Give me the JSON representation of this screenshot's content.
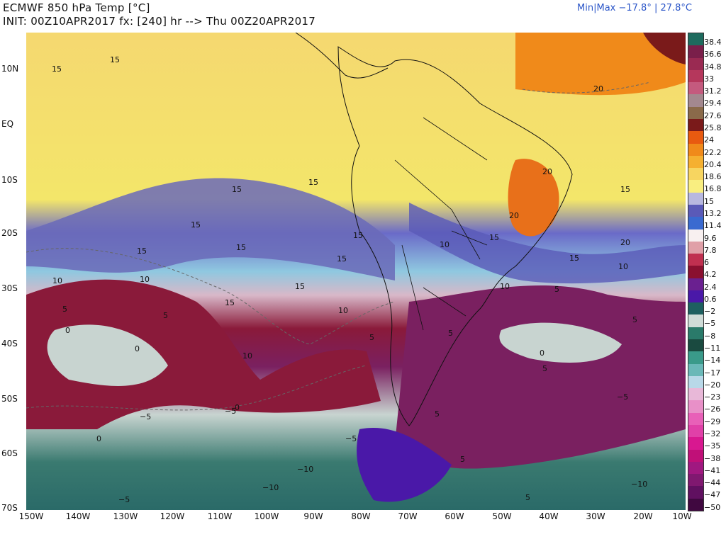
{
  "title": {
    "line1": "ECMWF 850 hPa Temp [°C]",
    "line2": "INIT: 00Z10APR2017 fx: [240] hr --> Thu 00Z20APR2017"
  },
  "minmax": "Min|Max −17.8° | 27.8°C",
  "lat_labels": [
    "10N",
    "EQ",
    "10S",
    "20S",
    "30S",
    "40S",
    "50S",
    "60S",
    "70S"
  ],
  "lon_labels": [
    "150W",
    "140W",
    "130W",
    "120W",
    "110W",
    "100W",
    "90W",
    "80W",
    "70W",
    "60W",
    "50W",
    "40W",
    "30W",
    "20W",
    "10W"
  ],
  "colorbar": {
    "labels": [
      "38.4",
      "36.6",
      "34.8",
      "33",
      "31.2",
      "29.4",
      "27.6",
      "25.8",
      "24",
      "22.2",
      "20.4",
      "18.6",
      "16.8",
      "15",
      "13.2",
      "11.4",
      "9.6",
      "7.8",
      "6",
      "4.2",
      "2.4",
      "0.6",
      "−2",
      "−5",
      "−8",
      "−11",
      "−14",
      "−17",
      "−20",
      "−23",
      "−26",
      "−29",
      "−32",
      "−35",
      "−38",
      "−41",
      "−44",
      "−47",
      "−50"
    ],
    "colors": [
      "#1e6b5e",
      "#7a1f4a",
      "#9a2a52",
      "#b5375c",
      "#c45a7e",
      "#a3888f",
      "#8a6a4a",
      "#7a1a1a",
      "#e85a10",
      "#f08a1a",
      "#f5b030",
      "#f7d560",
      "#f9ee80",
      "#b8b8e0",
      "#5a5ab8",
      "#3a6ad0",
      "#f8f0f0",
      "#e0a0a8",
      "#c03050",
      "#8a1030",
      "#6a2090",
      "#4a18a8",
      "#1e6060",
      "#d0dcd8",
      "#2a7a6a",
      "#1a4a40",
      "#3a9a8a",
      "#6ab8b8",
      "#b8d8e8",
      "#e8b8d8",
      "#e890c8",
      "#e860b8",
      "#e040a8",
      "#d81890",
      "#c01078",
      "#a01880",
      "#801870",
      "#601060",
      "#400840"
    ]
  },
  "contour_labels": [
    "15",
    "15",
    "15",
    "15",
    "15",
    "15",
    "15",
    "15",
    "15",
    "15",
    "15",
    "15",
    "15",
    "15",
    "20",
    "20",
    "20",
    "20",
    "10",
    "10",
    "10",
    "10",
    "10",
    "10",
    "10",
    "5",
    "5",
    "5",
    "5",
    "5",
    "5",
    "5",
    "5",
    "5",
    "5",
    "0",
    "0",
    "0",
    "0",
    "0",
    "−5",
    "−5",
    "−5",
    "−5",
    "−5",
    "−10",
    "−10",
    "−10"
  ]
}
